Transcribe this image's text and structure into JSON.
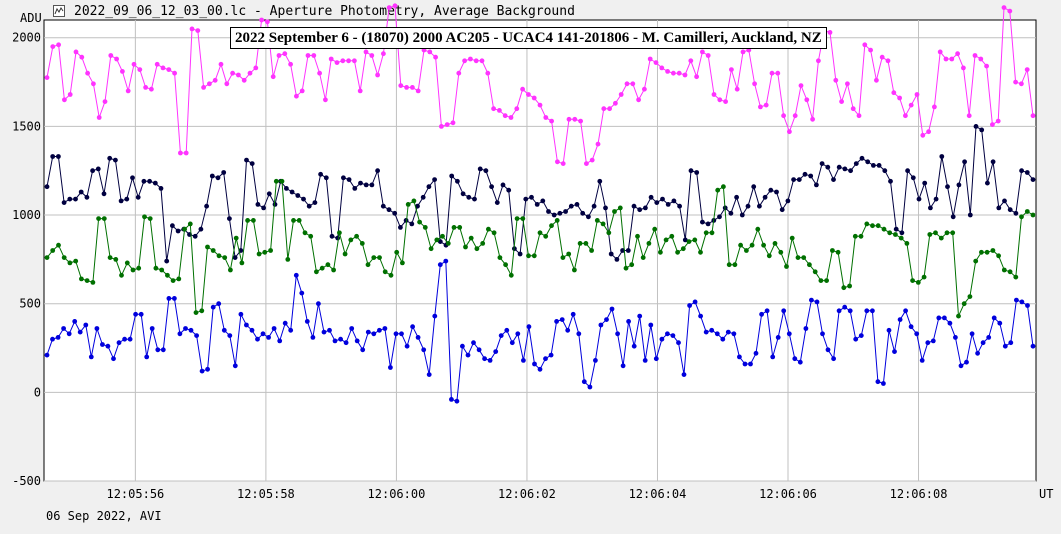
{
  "window": {
    "title": "2022_09_06_12_03_00.lc - Aperture Photometry, Average Background",
    "icon": "light-curve-icon"
  },
  "footer": {
    "date_mode": "06 Sep 2022, AVI"
  },
  "chart_data": {
    "type": "line",
    "title": "2022 September 6 - (18070) 2000 AC205 - UCAC4 141-201806 - M. Camilleri, Auckland, NZ",
    "xlabel": "UT",
    "ylabel": "ADU",
    "x_tick_labels": [
      "12:05:56",
      "12:05:58",
      "12:06:00",
      "12:06:02",
      "12:06:04",
      "12:06:06",
      "12:06:08"
    ],
    "x_tick_seconds": [
      56,
      58,
      60,
      62,
      64,
      66,
      68
    ],
    "xlim_seconds": [
      54.6,
      69.8
    ],
    "y_ticks": [
      -500,
      0,
      500,
      1000,
      1500,
      2000
    ],
    "ylim": [
      -500,
      2100
    ],
    "grid": true,
    "legend": "none",
    "series": [
      {
        "color": "#ff33ff",
        "values": [
          1775,
          1950,
          1960,
          1650,
          1680,
          1920,
          1890,
          1800,
          1740,
          1550,
          1640,
          1900,
          1880,
          1810,
          1700,
          1850,
          1820,
          1720,
          1710,
          1850,
          1830,
          1820,
          1800,
          1350,
          1350,
          2050,
          2040,
          1720,
          1740,
          1760,
          1850,
          1740,
          1800,
          1790,
          1760,
          1800,
          1830,
          2100,
          2090,
          1780,
          1900,
          1910,
          1850,
          1670,
          1700,
          1900,
          1900,
          1800,
          1650,
          1880,
          1860,
          1870,
          1870,
          1870,
          1700,
          1920,
          1900,
          1790,
          1910,
          2170,
          2180,
          1730,
          1720,
          1720,
          1700,
          1930,
          1920,
          1890,
          1500,
          1510,
          1520,
          1800,
          1870,
          1880,
          1870,
          1870,
          1800,
          1600,
          1590,
          1560,
          1550,
          1600,
          1710,
          1680,
          1660,
          1620,
          1550,
          1530,
          1300,
          1290,
          1540,
          1540,
          1530,
          1290,
          1310,
          1400,
          1600,
          1600,
          1630,
          1680,
          1740,
          1740,
          1650,
          1710,
          1880,
          1860,
          1830,
          1810,
          1800,
          1800,
          1790,
          1870,
          1780,
          1920,
          1900,
          1680,
          1650,
          1640,
          1820,
          1710,
          1920,
          1930,
          1740,
          1610,
          1620,
          1800,
          1800,
          1560,
          1470,
          1560,
          1730,
          1650,
          1540,
          1870,
          2040,
          2030,
          1760,
          1640,
          1740,
          1600,
          1560,
          1960,
          1930,
          1760,
          1890,
          1870,
          1690,
          1660,
          1560,
          1620,
          1680,
          1450,
          1470,
          1610,
          1920,
          1880,
          1880,
          1910,
          1830,
          1560,
          1900,
          1880,
          1840,
          1510,
          1530,
          2170,
          2150,
          1750,
          1740,
          1820,
          1560
        ]
      },
      {
        "color": "#000040",
        "values": [
          1160,
          1330,
          1330,
          1070,
          1090,
          1090,
          1130,
          1100,
          1250,
          1260,
          1120,
          1320,
          1310,
          1080,
          1090,
          1210,
          1100,
          1190,
          1190,
          1180,
          1150,
          740,
          940,
          910,
          920,
          890,
          880,
          920,
          1050,
          1220,
          1210,
          1240,
          980,
          760,
          800,
          1310,
          1290,
          1060,
          1040,
          1120,
          1060,
          1190,
          1150,
          1130,
          1110,
          1090,
          1050,
          1070,
          1230,
          1210,
          880,
          870,
          1210,
          1200,
          1150,
          1180,
          1170,
          1170,
          1250,
          1050,
          1030,
          1010,
          930,
          970,
          950,
          1050,
          1100,
          1160,
          1200,
          850,
          830,
          1220,
          1190,
          1120,
          1100,
          1090,
          1260,
          1250,
          1160,
          1070,
          1170,
          1140,
          810,
          780,
          1090,
          1100,
          1060,
          1080,
          1020,
          1000,
          1010,
          1020,
          1050,
          1060,
          1010,
          990,
          1050,
          1190,
          1040,
          780,
          750,
          800,
          800,
          1050,
          1030,
          1040,
          1100,
          1070,
          1090,
          1060,
          1080,
          1050,
          860,
          1250,
          1240,
          960,
          950,
          970,
          990,
          1040,
          1010,
          1100,
          1000,
          1050,
          1160,
          1050,
          1100,
          1140,
          1130,
          1030,
          1080,
          1200,
          1200,
          1230,
          1220,
          1170,
          1290,
          1270,
          1200,
          1270,
          1260,
          1250,
          1290,
          1320,
          1300,
          1280,
          1280,
          1250,
          1190,
          920,
          900,
          1250,
          1210,
          1090,
          1180,
          1040,
          1090,
          1330,
          1160,
          990,
          1170,
          1300,
          1000,
          1500,
          1480,
          1180,
          1300,
          1040,
          1080,
          1030,
          1010,
          1250,
          1240,
          1200
        ]
      },
      {
        "color": "#007000",
        "values": [
          760,
          800,
          830,
          760,
          730,
          740,
          640,
          630,
          620,
          980,
          980,
          760,
          750,
          660,
          730,
          690,
          700,
          990,
          980,
          700,
          690,
          660,
          630,
          640,
          920,
          950,
          450,
          460,
          820,
          800,
          770,
          760,
          690,
          870,
          730,
          970,
          970,
          780,
          790,
          800,
          1190,
          1190,
          750,
          970,
          970,
          900,
          880,
          680,
          700,
          720,
          690,
          900,
          780,
          860,
          880,
          840,
          720,
          760,
          760,
          680,
          660,
          790,
          730,
          1060,
          1080,
          960,
          930,
          810,
          860,
          880,
          840,
          930,
          930,
          820,
          870,
          810,
          840,
          920,
          900,
          760,
          720,
          660,
          980,
          980,
          770,
          770,
          900,
          880,
          940,
          970,
          760,
          780,
          690,
          840,
          840,
          800,
          970,
          950,
          900,
          1020,
          1040,
          700,
          720,
          880,
          760,
          840,
          920,
          790,
          860,
          880,
          790,
          810,
          850,
          860,
          790,
          900,
          900,
          1140,
          1160,
          720,
          720,
          830,
          800,
          830,
          920,
          830,
          770,
          840,
          790,
          710,
          870,
          760,
          760,
          720,
          680,
          630,
          630,
          800,
          790,
          590,
          600,
          880,
          880,
          950,
          940,
          940,
          920,
          900,
          890,
          870,
          840,
          630,
          620,
          650,
          890,
          900,
          870,
          900,
          900,
          430,
          500,
          540,
          740,
          790,
          790,
          800,
          770,
          690,
          680,
          650,
          990,
          1020,
          1000
        ]
      },
      {
        "color": "#0000dd",
        "values": [
          210,
          300,
          310,
          360,
          330,
          400,
          340,
          380,
          200,
          360,
          270,
          260,
          190,
          280,
          300,
          300,
          440,
          440,
          200,
          360,
          240,
          240,
          530,
          530,
          330,
          360,
          350,
          320,
          120,
          130,
          480,
          500,
          350,
          320,
          150,
          440,
          380,
          350,
          300,
          330,
          310,
          360,
          290,
          390,
          350,
          660,
          560,
          400,
          310,
          500,
          340,
          350,
          290,
          300,
          280,
          360,
          290,
          240,
          340,
          330,
          350,
          360,
          140,
          330,
          330,
          260,
          370,
          310,
          240,
          100,
          430,
          720,
          740,
          -40,
          -50,
          260,
          210,
          280,
          240,
          190,
          180,
          230,
          320,
          350,
          280,
          330,
          180,
          370,
          160,
          130,
          190,
          210,
          400,
          410,
          350,
          440,
          330,
          60,
          30,
          180,
          380,
          410,
          470,
          330,
          150,
          400,
          260,
          430,
          180,
          380,
          190,
          300,
          330,
          320,
          280,
          100,
          490,
          510,
          430,
          340,
          350,
          330,
          300,
          340,
          330,
          200,
          160,
          160,
          220,
          440,
          460,
          200,
          310,
          460,
          330,
          190,
          170,
          360,
          520,
          510,
          330,
          240,
          190,
          460,
          480,
          460,
          300,
          320,
          460,
          460,
          60,
          50,
          350,
          230,
          410,
          460,
          370,
          330,
          180,
          280,
          290,
          420,
          420,
          390,
          310,
          150,
          170,
          330,
          220,
          280,
          310,
          420,
          390,
          260,
          280,
          520,
          510,
          490,
          260
        ]
      }
    ]
  }
}
